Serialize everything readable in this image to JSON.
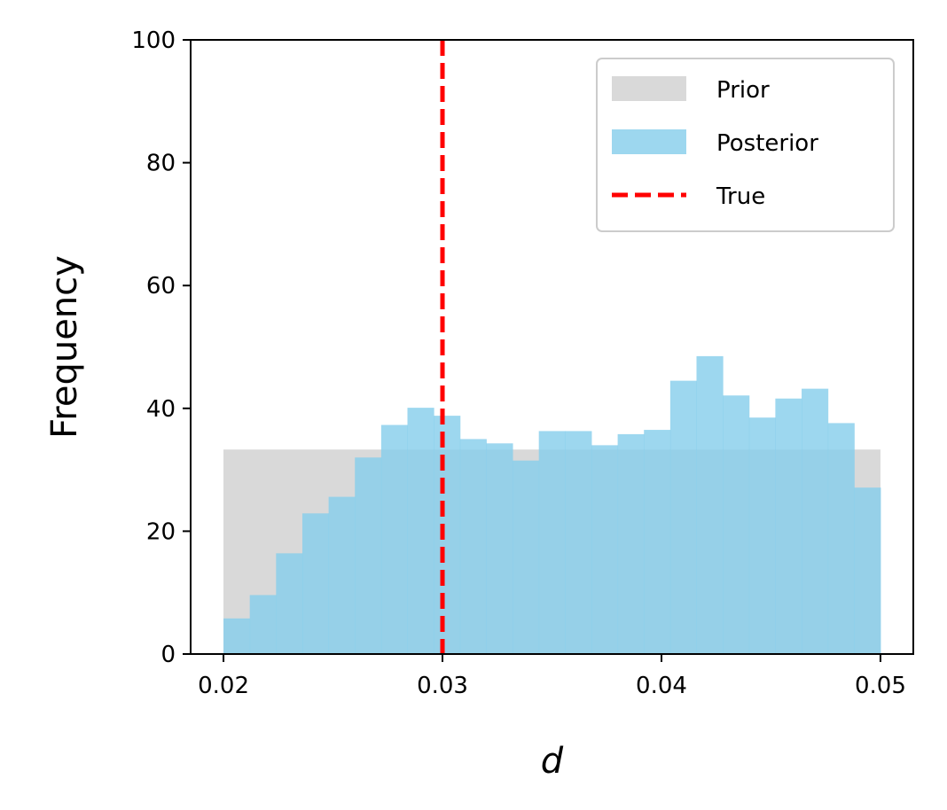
{
  "chart_data": {
    "type": "histogram",
    "xlabel": "d",
    "ylabel": "Frequency",
    "xlim": [
      0.0185,
      0.0515
    ],
    "ylim": [
      0,
      100
    ],
    "xticks": [
      "0.02",
      "0.03",
      "0.04",
      "0.05"
    ],
    "yticks": [
      "0",
      "20",
      "40",
      "60",
      "80",
      "100"
    ],
    "grid": false,
    "legend_position": "top-right",
    "true_value": 0.03,
    "series": [
      {
        "name": "Prior",
        "color": "#d9d9d9",
        "bins": [
          {
            "x0": 0.02,
            "x1": 0.05,
            "count": 33.3
          }
        ]
      },
      {
        "name": "Posterior",
        "color": "#87ceeb",
        "bin_start": 0.02,
        "bin_width": 0.0012,
        "counts": [
          5.8,
          9.6,
          16.4,
          22.9,
          25.6,
          32.0,
          37.3,
          40.1,
          38.8,
          35.0,
          34.3,
          31.5,
          36.3,
          36.3,
          34.0,
          35.8,
          36.5,
          44.5,
          48.5,
          42.1,
          38.5,
          41.6,
          43.2,
          37.6,
          27.1
        ]
      },
      {
        "name": "True",
        "color": "#ff0000",
        "style": "dashed",
        "x": 0.03
      }
    ]
  }
}
